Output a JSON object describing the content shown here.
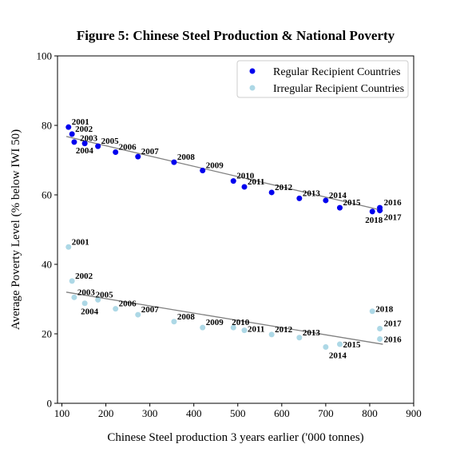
{
  "chart_data": {
    "type": "scatter",
    "title": "Figure 5: Chinese Steel Production & National Poverty",
    "xlabel": "Chinese Steel production 3 years earlier ('000 tonnes)",
    "ylabel": "Average Poverty Level (% below IWI 50)",
    "xlim": [
      90,
      900
    ],
    "ylim": [
      0,
      100
    ],
    "xticks": [
      100,
      200,
      300,
      400,
      500,
      600,
      700,
      800,
      900
    ],
    "yticks": [
      0,
      20,
      40,
      60,
      80,
      100
    ],
    "legend_position": "top-right",
    "series": [
      {
        "name": "Regular Recipient Countries",
        "color": "#0000ee",
        "points": [
          {
            "x": 115,
            "y": 79.5,
            "label": "2001"
          },
          {
            "x": 123,
            "y": 77.5,
            "label": "2002"
          },
          {
            "x": 128,
            "y": 75.2,
            "label": "2004"
          },
          {
            "x": 152,
            "y": 74.8,
            "label": "2003"
          },
          {
            "x": 182,
            "y": 74.0,
            "label": "2005"
          },
          {
            "x": 222,
            "y": 72.3,
            "label": "2006"
          },
          {
            "x": 273,
            "y": 71.0,
            "label": "2007"
          },
          {
            "x": 355,
            "y": 69.4,
            "label": "2008"
          },
          {
            "x": 420,
            "y": 67.0,
            "label": "2009"
          },
          {
            "x": 490,
            "y": 64.0,
            "label": "2010"
          },
          {
            "x": 515,
            "y": 62.3,
            "label": "2011"
          },
          {
            "x": 577,
            "y": 60.7,
            "label": "2012"
          },
          {
            "x": 640,
            "y": 59.0,
            "label": "2013"
          },
          {
            "x": 700,
            "y": 58.4,
            "label": "2014"
          },
          {
            "x": 732,
            "y": 56.3,
            "label": "2015"
          },
          {
            "x": 823,
            "y": 56.3,
            "label": "2016"
          },
          {
            "x": 823,
            "y": 55.5,
            "label": "2017"
          },
          {
            "x": 806,
            "y": 55.2,
            "label": "2018"
          }
        ],
        "trend": {
          "x": [
            110,
            830
          ],
          "y": [
            76.8,
            55.5
          ]
        }
      },
      {
        "name": "Irregular Recipient Countries",
        "color": "#add8e6",
        "points": [
          {
            "x": 115,
            "y": 45.0,
            "label": "2001"
          },
          {
            "x": 123,
            "y": 35.2,
            "label": "2002"
          },
          {
            "x": 128,
            "y": 30.5,
            "label": "2003"
          },
          {
            "x": 152,
            "y": 28.8,
            "label": "2004"
          },
          {
            "x": 182,
            "y": 29.8,
            "label": "2005"
          },
          {
            "x": 222,
            "y": 27.2,
            "label": "2006"
          },
          {
            "x": 273,
            "y": 25.5,
            "label": "2007"
          },
          {
            "x": 355,
            "y": 23.5,
            "label": "2008"
          },
          {
            "x": 420,
            "y": 21.8,
            "label": "2009"
          },
          {
            "x": 490,
            "y": 21.8,
            "label": "2010"
          },
          {
            "x": 515,
            "y": 21.0,
            "label": "2011"
          },
          {
            "x": 577,
            "y": 19.8,
            "label": "2012"
          },
          {
            "x": 640,
            "y": 18.9,
            "label": "2013"
          },
          {
            "x": 700,
            "y": 16.2,
            "label": "2014"
          },
          {
            "x": 732,
            "y": 17.0,
            "label": "2015"
          },
          {
            "x": 823,
            "y": 18.5,
            "label": "2016"
          },
          {
            "x": 823,
            "y": 21.5,
            "label": "2017"
          },
          {
            "x": 806,
            "y": 26.5,
            "label": "2018"
          }
        ],
        "trend": {
          "x": [
            110,
            830
          ],
          "y": [
            32.0,
            17.0
          ]
        }
      }
    ]
  }
}
